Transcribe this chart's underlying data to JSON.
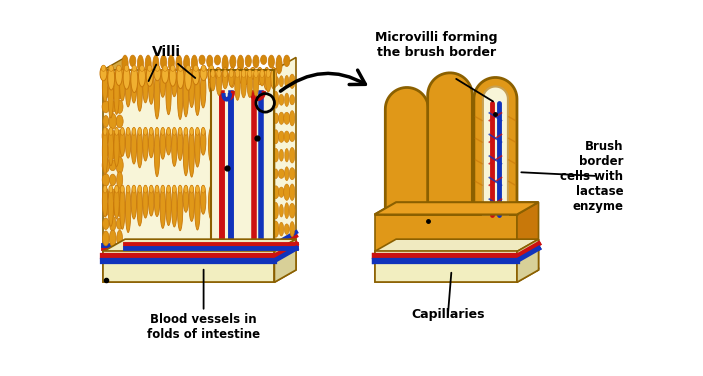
{
  "bg_color": "#ffffff",
  "colors": {
    "orange_dark": "#C8780A",
    "orange_main": "#D4880C",
    "orange_mid": "#E09818",
    "orange_light": "#F0B030",
    "orange_bright": "#EAA020",
    "yellow_bg": "#F8F5D8",
    "cream": "#F2EEC0",
    "base_top": "#F0EAC0",
    "base_side": "#D8D098",
    "red_vessel": "#CC1111",
    "blue_vessel": "#1133BB",
    "black": "#111111",
    "white": "#FFFFFF",
    "tan": "#C8A050",
    "outline": "#8B6000"
  },
  "labels": {
    "villi": "Villi",
    "blood_vessels": "Blood vessels in\nfolds of intestine",
    "microvilli": "Microvilli forming\nthe brush border",
    "brush_border": "Brush\nborder\ncells with\nlactase\nenzyme",
    "capillaries": "Capillaries"
  }
}
